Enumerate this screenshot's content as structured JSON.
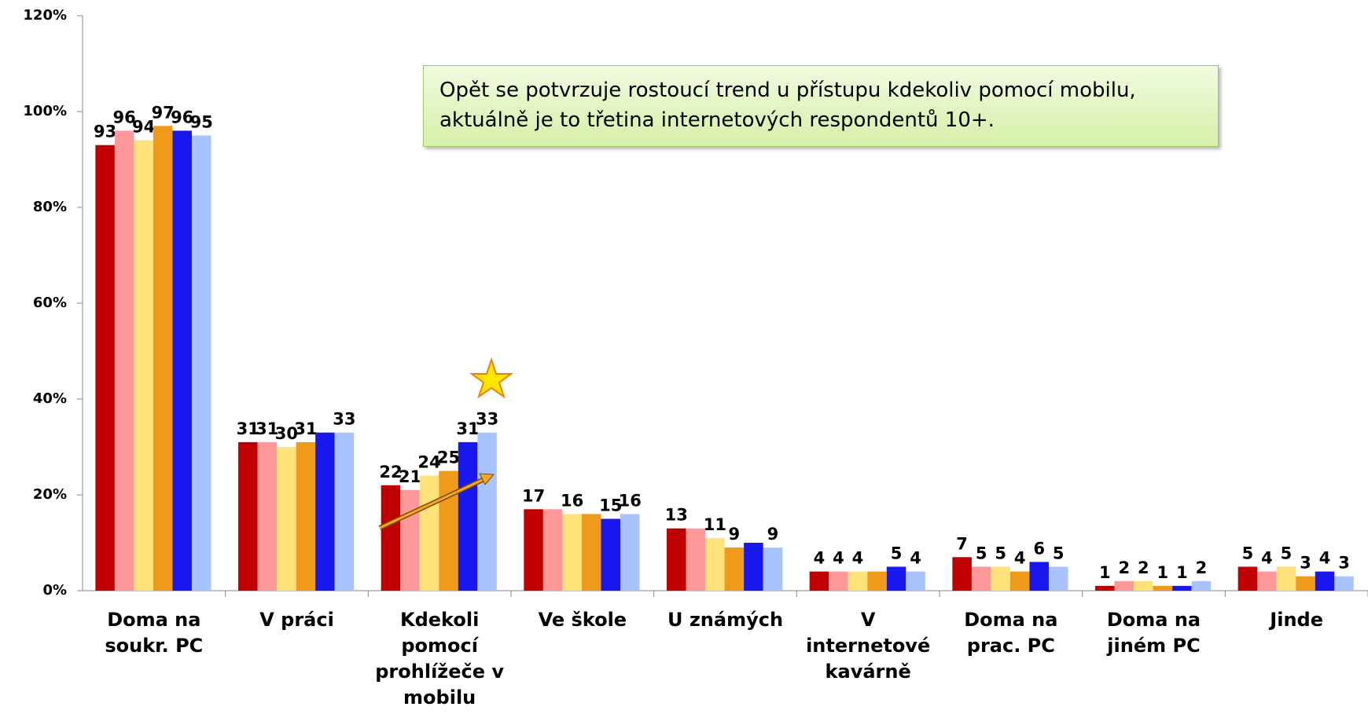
{
  "chart_data": {
    "type": "bar",
    "annotation": "Opět se potvrzuje rostoucí trend u přístupu kdekoliv pomocí mobilu, aktuálně je to třetina internetových respondentů 10+.",
    "categories": [
      "Doma na\nsoukr. PC",
      "V práci",
      "Kdekoli\npomocí\nprohlížeče v\nmobilu",
      "Ve škole",
      "U známých",
      "V\ninternetové\nkavárně",
      "Doma na\nprac. PC",
      "Doma na\njiném PC",
      "Jinde"
    ],
    "series": [
      {
        "color": "#c00000",
        "values": [
          93,
          31,
          22,
          17,
          13,
          4,
          7,
          1,
          5
        ],
        "value_labels": [
          "93",
          "31",
          "22",
          "17",
          "13",
          "4",
          "7",
          "1",
          "5"
        ]
      },
      {
        "color": "#ff9999",
        "values": [
          96,
          31,
          21,
          17,
          13,
          4,
          5,
          2,
          4
        ],
        "value_labels": [
          "96",
          "31",
          "21",
          null,
          null,
          "4",
          "5",
          "2",
          "4"
        ]
      },
      {
        "color": "#ffe27a",
        "values": [
          94,
          30,
          24,
          16,
          11,
          4,
          5,
          2,
          5
        ],
        "value_labels": [
          "94",
          "30",
          "24",
          "16",
          "11",
          "4",
          "5",
          "2",
          "5"
        ]
      },
      {
        "color": "#f09a1c",
        "values": [
          97,
          31,
          25,
          16,
          9,
          4,
          4,
          1,
          3
        ],
        "value_labels": [
          "97",
          "31",
          "25",
          null,
          "9",
          null,
          "4",
          "1",
          "3"
        ]
      },
      {
        "color": "#1818ee",
        "values": [
          96,
          33,
          31,
          15,
          10,
          5,
          6,
          1,
          4
        ],
        "value_labels": [
          "96",
          null,
          "31",
          "15",
          null,
          "5",
          "6",
          "1",
          "4"
        ]
      },
      {
        "color": "#a9c3ff",
        "values": [
          95,
          33,
          33,
          16,
          9,
          4,
          5,
          2,
          3
        ],
        "value_labels": [
          "95",
          "33",
          "33",
          "16",
          "9",
          "4",
          "5",
          "2",
          "3"
        ]
      }
    ],
    "ylim": [
      0,
      120
    ],
    "yticks": [
      {
        "value": 0,
        "label": "0%"
      },
      {
        "value": 20,
        "label": "20%"
      },
      {
        "value": 40,
        "label": "40%"
      },
      {
        "value": 60,
        "label": "60%"
      },
      {
        "value": 80,
        "label": "80%"
      },
      {
        "value": 100,
        "label": "100%"
      },
      {
        "value": 120,
        "label": "120%"
      }
    ]
  }
}
